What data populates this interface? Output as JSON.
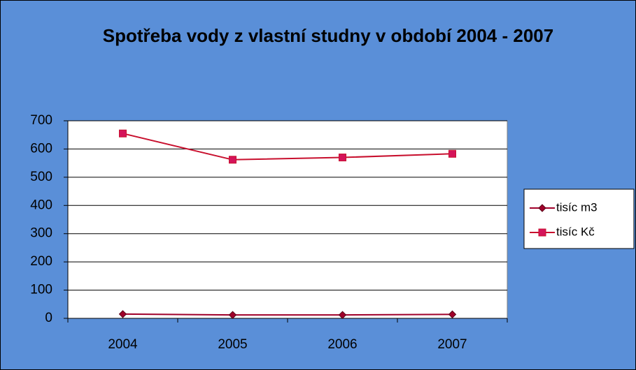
{
  "chart_data": {
    "type": "line",
    "title": "Spotřeba vody z vlastní studny v období 2004 - 2007",
    "categories": [
      "2004",
      "2005",
      "2006",
      "2007"
    ],
    "series": [
      {
        "name": "tisíc m3",
        "color": "#a0002a",
        "marker": "diamond",
        "values": [
          15,
          12,
          12,
          14
        ]
      },
      {
        "name": "tisíc Kč",
        "color": "#c8102e",
        "marker": "square",
        "values": [
          655,
          562,
          570,
          583
        ]
      }
    ],
    "ylim": [
      0,
      700
    ],
    "yticks": [
      0,
      100,
      200,
      300,
      400,
      500,
      600,
      700
    ],
    "grid": true,
    "legend": "right"
  }
}
